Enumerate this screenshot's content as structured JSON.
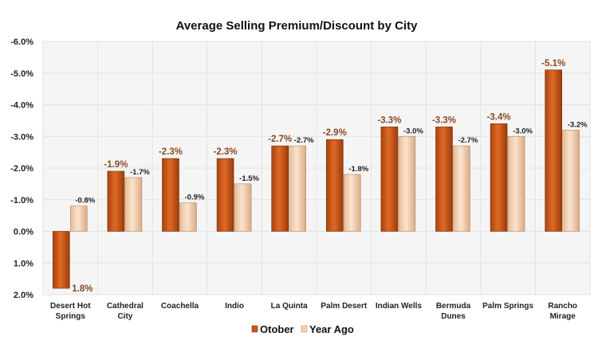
{
  "chart_data": {
    "type": "bar",
    "title": "Average Selling Premium/Discount by City",
    "xlabel": "",
    "ylabel": "",
    "ylim": [
      -6.0,
      2.0
    ],
    "y_inverted": true,
    "y_ticks": [
      "-6.0%",
      "-5.0%",
      "-4.0%",
      "-3.0%",
      "-2.0%",
      "-1.0%",
      "0.0%",
      "1.0%",
      "2.0%"
    ],
    "grid": true,
    "legend_position": "bottom",
    "categories": [
      [
        "Desert Hot",
        "Springs"
      ],
      [
        "Cathedral",
        "City"
      ],
      [
        "Coachella"
      ],
      [
        "Indio"
      ],
      [
        "La Quinta"
      ],
      [
        "Palm Desert"
      ],
      [
        "Indian Wells"
      ],
      [
        "Bermuda",
        "Dunes"
      ],
      [
        "Palm Springs"
      ],
      [
        "Rancho",
        "Mirage"
      ]
    ],
    "series": [
      {
        "name": "Otober",
        "color": "#c8581a",
        "values": [
          1.8,
          -1.9,
          -2.3,
          -2.3,
          -2.7,
          -2.9,
          -3.3,
          -3.3,
          -3.4,
          -5.1
        ],
        "labels": [
          "1.8%",
          "-1.9%",
          "-2.3%",
          "-2.3%",
          "-2.7%",
          "-2.9%",
          "-3.3%",
          "-3.3%",
          "-3.4%",
          "-5.1%"
        ]
      },
      {
        "name": "Year Ago",
        "color": "#f3d2b3",
        "values": [
          -0.8,
          -1.7,
          -0.9,
          -1.5,
          -2.7,
          -1.8,
          -3.0,
          -2.7,
          -3.0,
          -3.2
        ],
        "labels": [
          "-0.8%",
          "-1.7%",
          "-0.9%",
          "-1.5%",
          "-2.7%",
          "-1.8%",
          "-3.0%",
          "-2.7%",
          "-3.0%",
          "-3.2%"
        ]
      }
    ]
  }
}
